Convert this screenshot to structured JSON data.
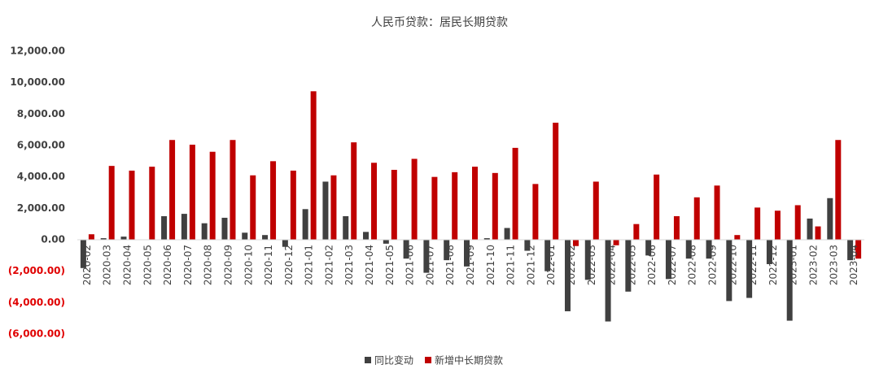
{
  "chart_data": {
    "type": "bar",
    "title": "人民币贷款：居民长期贷款",
    "categories": [
      "2020-02",
      "2020-03",
      "2020-04",
      "2020-05",
      "2020-06",
      "2020-07",
      "2020-08",
      "2020-09",
      "2020-10",
      "2020-11",
      "2020-12",
      "2021-01",
      "2021-02",
      "2021-03",
      "2021-04",
      "2021-05",
      "2021-06",
      "2021-07",
      "2021-08",
      "2021-09",
      "2021-10",
      "2021-11",
      "2021-12",
      "2022-01",
      "2022-02",
      "2022-03",
      "2022-04",
      "2022-05",
      "2022-06",
      "2022-07",
      "2022-08",
      "2022-09",
      "2022-10",
      "2022-11",
      "2022-12",
      "2023-01",
      "2023-02",
      "2023-03",
      "2023-04"
    ],
    "series": [
      {
        "name": "同比变动",
        "color": "#404040",
        "values": [
          -1800,
          100,
          200,
          0,
          1500,
          1650,
          1050,
          1400,
          450,
          300,
          -450,
          1950,
          3700,
          1500,
          500,
          -250,
          -1200,
          -2100,
          -1300,
          -1700,
          100,
          750,
          -700,
          -2000,
          -4550,
          -2550,
          -5200,
          -3300,
          -1000,
          -2500,
          -1200,
          -1200,
          -3900,
          -3700,
          -1550,
          -5150,
          1350,
          2650,
          -1300
        ]
      },
      {
        "name": "新增中长期贷款",
        "color": "#c00000",
        "values": [
          350,
          4700,
          4400,
          4650,
          6350,
          6050,
          5600,
          6350,
          4100,
          5000,
          4400,
          9450,
          4100,
          6200,
          4900,
          4450,
          5150,
          4000,
          4300,
          4650,
          4250,
          5850,
          3550,
          7450,
          -400,
          3700,
          -350,
          1000,
          4150,
          1500,
          2700,
          3450,
          300,
          2050,
          1850,
          2200,
          850,
          6350,
          -1200
        ]
      }
    ],
    "ylim": [
      -6000,
      12000
    ],
    "yticks": [
      {
        "value": -6000,
        "label": "(6,000.00)"
      },
      {
        "value": -4000,
        "label": "(4,000.00)"
      },
      {
        "value": -2000,
        "label": "(2,000.00)"
      },
      {
        "value": 0,
        "label": "0.00"
      },
      {
        "value": 2000,
        "label": "2,000.00"
      },
      {
        "value": 4000,
        "label": "4,000.00"
      },
      {
        "value": 6000,
        "label": "6,000.00"
      },
      {
        "value": 8000,
        "label": "8,000.00"
      },
      {
        "value": 10000,
        "label": "10,000.00"
      },
      {
        "value": 12000,
        "label": "12,000.00"
      }
    ],
    "grid": false
  }
}
